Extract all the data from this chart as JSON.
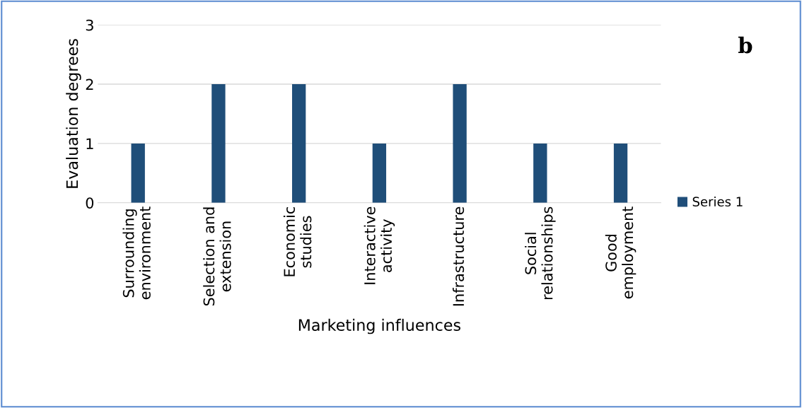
{
  "chart_data": {
    "type": "bar",
    "xlabel": "Marketing influences",
    "ylabel": "Evaluation degrees",
    "categories": [
      "Surrounding environment",
      "Selection and extension",
      "Economic studies",
      "Interactive activity",
      "Infrastructure",
      "Social relationships",
      "Good employment"
    ],
    "series": [
      {
        "name": "Series 1",
        "color": "#1f4e79",
        "values": [
          1,
          2,
          2,
          1,
          2,
          1,
          1
        ]
      }
    ],
    "ylim": [
      0,
      3
    ],
    "yticks": [
      0,
      1,
      2,
      3
    ],
    "grid": "y",
    "legend": "right",
    "annotations": [
      "b"
    ]
  }
}
